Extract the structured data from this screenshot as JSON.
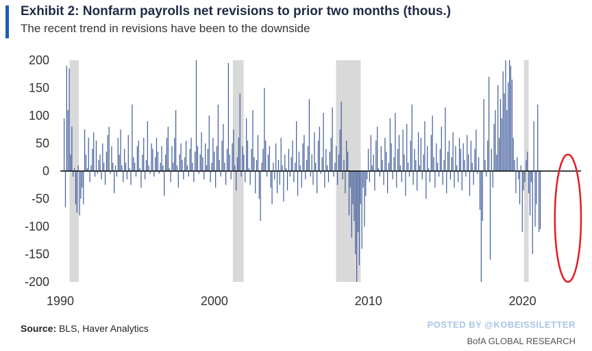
{
  "header": {
    "title": "Exhibit 2: Nonfarm payrolls net revisions to prior two months (thous.)",
    "subtitle": "The recent trend in revisions have been to the downside"
  },
  "footer": {
    "source_label": "Source:",
    "source_text": "BLS, Haver Analytics",
    "posted_by": "POSTED BY @KOBEISSILETTER",
    "brand": "BofA GLOBAL RESEARCH"
  },
  "colors": {
    "accent": "#1e5bb8",
    "bars": "#3d5a99",
    "recession": "#d9d9d9",
    "highlight_circle": "#e31b23"
  },
  "chart_data": {
    "type": "bar",
    "ylim": [
      -200,
      200
    ],
    "yticks": [
      200,
      150,
      100,
      50,
      0,
      -50,
      -100,
      -150,
      -200
    ],
    "xlim": [
      1990.0,
      2023.8
    ],
    "xticks": [
      1990,
      2000,
      2010,
      2020
    ],
    "grid": false,
    "recession_shading": [
      [
        1990.6,
        1991.2
      ],
      [
        2001.2,
        2001.9
      ],
      [
        2007.9,
        2009.5
      ],
      [
        2020.1,
        2020.4
      ]
    ],
    "annotation": {
      "type": "circle",
      "x_range": [
        2022.1,
        2023.8
      ],
      "y_range": [
        -200,
        30
      ]
    },
    "series": [
      {
        "x_start": 1990.25,
        "x_step": 0.0833,
        "values": [
          95,
          -65,
          190,
          110,
          185,
          30,
          80,
          -10,
          5,
          -60,
          -75,
          10,
          -80,
          -50,
          -30,
          -60,
          75,
          30,
          5,
          60,
          -20,
          10,
          40,
          70,
          -10,
          55,
          -5,
          20,
          30,
          -15,
          50,
          15,
          -25,
          35,
          65,
          80,
          -5,
          45,
          15,
          -40,
          10,
          -10,
          60,
          30,
          75,
          10,
          -20,
          40,
          15,
          -15,
          65,
          5,
          -25,
          120,
          25,
          15,
          -10,
          45,
          55,
          5,
          -30,
          30,
          60,
          -15,
          20,
          90,
          10,
          -5,
          50,
          40,
          -10,
          25,
          60,
          35,
          -5,
          15,
          45,
          10,
          -45,
          30,
          60,
          80,
          5,
          -20,
          45,
          15,
          60,
          110,
          10,
          -30,
          30,
          50,
          20,
          -15,
          25,
          55,
          10,
          -10,
          40,
          60,
          15,
          -20,
          35,
          200,
          45,
          -5,
          30,
          70,
          25,
          -15,
          50,
          10,
          40,
          100,
          -20,
          15,
          60,
          35,
          -30,
          45,
          120,
          20,
          -10,
          55,
          85,
          15,
          -25,
          40,
          195,
          30,
          -15,
          50,
          75,
          10,
          -35,
          25,
          60,
          140,
          -10,
          45,
          30,
          -20,
          95,
          55,
          5,
          -25,
          40,
          110,
          25,
          -40,
          20,
          65,
          -50,
          -90,
          15,
          40,
          150,
          55,
          -10,
          30,
          45,
          -30,
          -60,
          15,
          -15,
          50,
          -40,
          20,
          -25,
          60,
          10,
          -55,
          30,
          5,
          -35,
          40,
          -10,
          25,
          55,
          -20,
          15,
          90,
          -45,
          35,
          10,
          -30,
          50,
          65,
          -15,
          20,
          45,
          130,
          -10,
          30,
          -25,
          70,
          15,
          -40,
          55,
          80,
          -5,
          25,
          105,
          -30,
          40,
          10,
          -20,
          35,
          60,
          115,
          -10,
          15,
          45,
          -25,
          30,
          75,
          125,
          -15,
          20,
          -40,
          55,
          35,
          -80,
          -30,
          -120,
          -60,
          -90,
          -150,
          -200,
          -110,
          -170,
          -60,
          -140,
          -30,
          -100,
          -45,
          -15,
          40,
          -20,
          65,
          10,
          30,
          -35,
          55,
          80,
          5,
          -10,
          45,
          20,
          -25,
          60,
          35,
          -40,
          15,
          95,
          50,
          -15,
          25,
          105,
          -30,
          40,
          65,
          10,
          -20,
          75,
          30,
          -45,
          85,
          15,
          -10,
          55,
          120,
          -25,
          40,
          20,
          -35,
          70,
          10,
          60,
          -15,
          30,
          90,
          -50,
          45,
          5,
          -20,
          65,
          100,
          25,
          -30,
          50,
          15,
          -10,
          40,
          80,
          -25,
          20,
          115,
          -40,
          35,
          55,
          -15,
          25,
          70,
          -30,
          45,
          10,
          -20,
          60,
          40,
          -35,
          50,
          20,
          -10,
          65,
          30,
          -45,
          55,
          15,
          -25,
          40,
          75,
          -5,
          25,
          -70,
          -200,
          -90,
          130,
          20,
          -10,
          55,
          170,
          -160,
          40,
          -30,
          85,
          110,
          30,
          155,
          60,
          130,
          95,
          180,
          140,
          200,
          110,
          160,
          200,
          190,
          165,
          60,
          20,
          -40,
          25,
          -15,
          -60,
          10,
          -110,
          -35,
          -20,
          20,
          35,
          -40,
          -80,
          -20,
          -150,
          90,
          -100,
          -60,
          120,
          -110,
          -105
        ]
      }
    ]
  }
}
